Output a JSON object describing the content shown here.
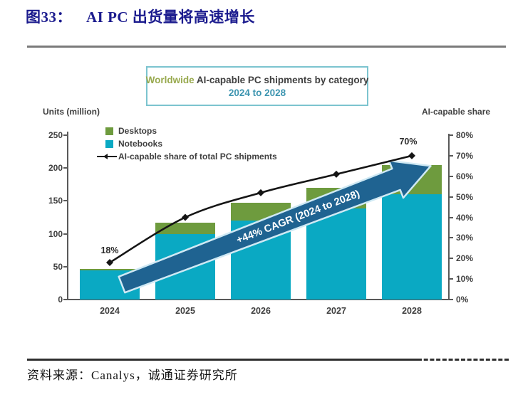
{
  "header": {
    "figure_label": "图33：",
    "title_text": "AI PC 出货量将高速增长"
  },
  "chart": {
    "box_title": {
      "highlight": "Worldwide",
      "rest": " AI-capable PC shipments by category",
      "range": "2024 to 2028"
    },
    "left_axis_label": "Units (million)",
    "right_axis_label": "AI-capable share",
    "legend": {
      "desktops": "Desktops",
      "notebooks": "Notebooks",
      "line": "AI-capable share of total PC shipments"
    },
    "annotations": {
      "start_share_label": "18%",
      "end_share_label": "70%",
      "arrow_label": "+44% CAGR (2024 to 2028)"
    }
  },
  "chart_data": {
    "type": "bar",
    "title": "Worldwide AI-capable PC shipments by category 2024 to 2028",
    "categories": [
      "2024",
      "2025",
      "2026",
      "2027",
      "2028"
    ],
    "series": [
      {
        "name": "Notebooks",
        "type": "bar",
        "stacked": true,
        "color": "#0aa9c3",
        "values": [
          44,
          100,
          120,
          139,
          160
        ]
      },
      {
        "name": "Desktops",
        "type": "bar",
        "stacked": true,
        "color": "#6e9b3e",
        "values": [
          3,
          17,
          27,
          31,
          45
        ]
      },
      {
        "name": "AI-capable share of total PC shipments",
        "type": "line",
        "y_axis": "right",
        "color": "#151515",
        "unit": "%",
        "values": [
          18,
          40,
          52,
          61,
          70
        ]
      }
    ],
    "stacked_totals": [
      47,
      117,
      147,
      170,
      205
    ],
    "left_axis": {
      "label": "Units (million)",
      "range": [
        0,
        250
      ],
      "ticks": [
        0,
        50,
        100,
        150,
        200,
        250
      ]
    },
    "right_axis": {
      "label": "AI-capable share",
      "range": [
        0,
        80
      ],
      "ticks": [
        "0%",
        "10%",
        "20%",
        "30%",
        "40%",
        "50%",
        "60%",
        "70%",
        "80%"
      ]
    },
    "grid": false,
    "legend_position": "top-left",
    "annotations": [
      "18% at 2024",
      "70% at 2028",
      "+44% CAGR (2024 to 2028)"
    ]
  },
  "colors": {
    "figure_title": "#1b1b8e",
    "desktops": "#6e9b3e",
    "notebooks": "#0aa9c3",
    "share_line": "#151515",
    "arrow_fill": "#1f6391",
    "arrow_border": "#cfe9f4",
    "box_border": "#7cc4cf",
    "worldwide_text": "#98a94e",
    "range_text": "#3d95b0"
  },
  "footer": {
    "source": "资料来源：Canalys，诚通证券研究所"
  }
}
